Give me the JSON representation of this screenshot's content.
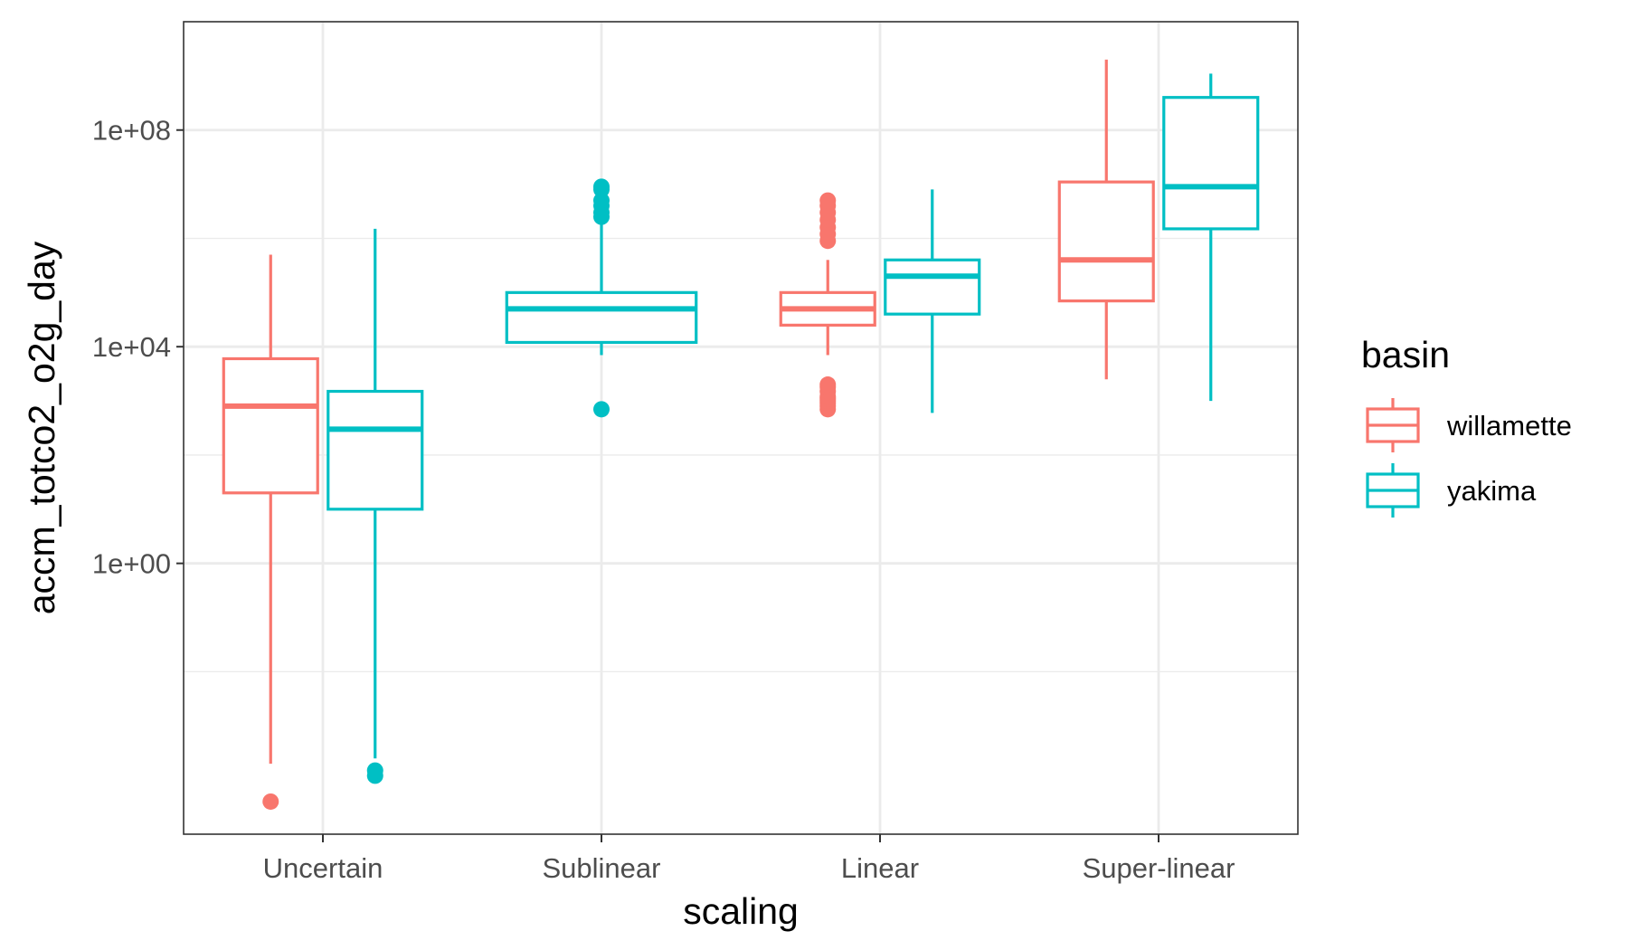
{
  "chart_data": {
    "type": "boxplot",
    "xlabel": "scaling",
    "ylabel": "accm_totco2_o2g_day",
    "y_scale": "log10",
    "ylim": [
      1e-05,
      10000000000.0
    ],
    "y_ticks": [
      1,
      10000,
      100000000
    ],
    "y_tick_labels": [
      "1e+00",
      "1e+04",
      "1e+08"
    ],
    "categories": [
      "Uncertain",
      "Sublinear",
      "Linear",
      "Super-linear"
    ],
    "grid": true,
    "legend": {
      "title": "basin",
      "position": "right"
    },
    "series": [
      {
        "name": "willamette",
        "color": "#F8766D",
        "boxes": [
          {
            "category": "Uncertain",
            "whisker_low": 0.0002,
            "q1": 20,
            "median": 800,
            "q3": 6000,
            "whisker_high": 500000,
            "outliers": [
              4e-05
            ]
          },
          {
            "category": "Sublinear",
            "present": false
          },
          {
            "category": "Linear",
            "whisker_low": 7000,
            "q1": 25000,
            "median": 50000,
            "q3": 100000,
            "whisker_high": 400000,
            "outliers": [
              700,
              800,
              900,
              1000,
              1100,
              1200,
              1500,
              1800,
              2000,
              900000,
              1200000,
              1600000,
              2200000,
              3000000,
              4000000,
              5000000
            ]
          },
          {
            "category": "Super-linear",
            "whisker_low": 2500,
            "q1": 70000,
            "median": 400000,
            "q3": 11000000,
            "whisker_high": 2000000000,
            "outliers": []
          }
        ]
      },
      {
        "name": "yakima",
        "color": "#00BFC4",
        "boxes": [
          {
            "category": "Uncertain",
            "whisker_low": 0.00025,
            "q1": 10,
            "median": 300,
            "q3": 1500,
            "whisker_high": 1500000,
            "outliers": [
              0.00012,
              0.00015
            ]
          },
          {
            "category": "Sublinear",
            "whisker_low": 7000,
            "q1": 12000,
            "median": 50000,
            "q3": 100000,
            "whisker_high": 2500000,
            "outliers": [
              700,
              2500000,
              3000000,
              4000000,
              5000000,
              8000000,
              9000000
            ]
          },
          {
            "category": "Linear",
            "whisker_low": 600,
            "q1": 40000,
            "median": 200000,
            "q3": 400000,
            "whisker_high": 8000000,
            "outliers": []
          },
          {
            "category": "Super-linear",
            "whisker_low": 1000,
            "q1": 1500000,
            "median": 9000000,
            "q3": 400000000,
            "whisker_high": 1100000000,
            "outliers": []
          }
        ]
      }
    ]
  }
}
